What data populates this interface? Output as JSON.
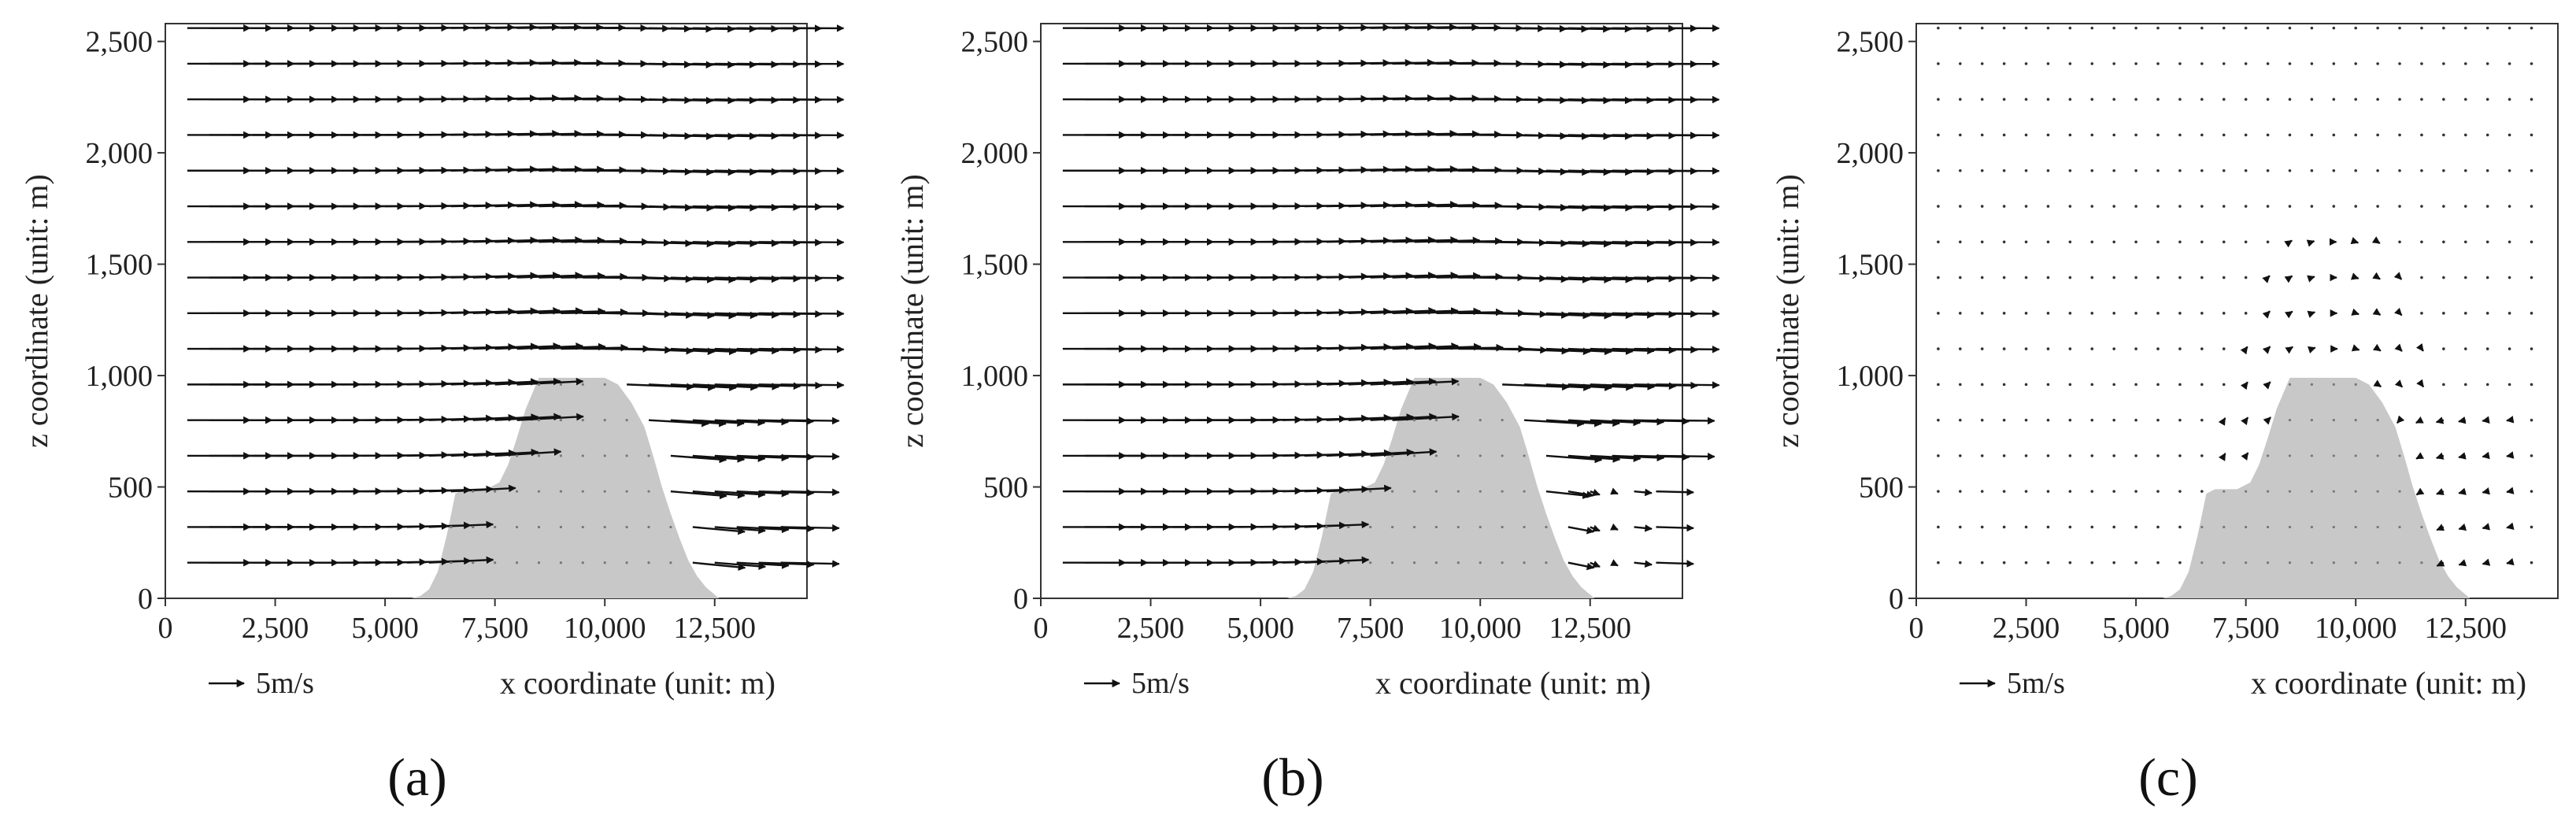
{
  "terrain": {
    "x": [
      0,
      5600,
      5800,
      6000,
      6200,
      6400,
      6600,
      6800,
      7000,
      7300,
      7600,
      7800,
      8000,
      8200,
      8500,
      9000,
      9500,
      10000,
      10300,
      10600,
      10900,
      11100,
      11300,
      11500,
      11700,
      11900,
      12100,
      12300,
      12600,
      14600
    ],
    "z": [
      0,
      0,
      10,
      40,
      120,
      280,
      470,
      490,
      490,
      490,
      520,
      600,
      720,
      850,
      990,
      990,
      990,
      990,
      960,
      880,
      770,
      640,
      500,
      380,
      270,
      170,
      100,
      50,
      0,
      0
    ],
    "color": "#c8c8c8"
  },
  "chart_data": [
    {
      "type": "quiver",
      "panel_label": "(a)",
      "xlabel": "x coordinate (unit: m)",
      "ylabel": "z coordinate (unit: m)",
      "xlim": [
        0,
        14600
      ],
      "ylim": [
        0,
        2580
      ],
      "xticks": [
        0,
        2500,
        5000,
        7500,
        10000,
        12500
      ],
      "xtick_labels": [
        "0",
        "2,500",
        "5,000",
        "7,500",
        "10,000",
        "12,500"
      ],
      "yticks": [
        0,
        500,
        1000,
        1500,
        2000,
        2500
      ],
      "ytick_labels": [
        "0",
        "500",
        "1,000",
        "1,500",
        "2,000",
        "2,500"
      ],
      "scale_label": "5m/s",
      "scale_value": 5,
      "grid_x": {
        "start": 500,
        "step": 500,
        "count": 28
      },
      "grid_z": {
        "start": 160,
        "step": 160,
        "count": 16
      },
      "flow": {
        "U": 6.6,
        "perturbation": 1.0
      },
      "vector_color": "#111111"
    },
    {
      "type": "quiver",
      "panel_label": "(b)",
      "xlabel": "x coordinate (unit: m)",
      "ylabel": "z coordinate (unit: m)",
      "xlim": [
        0,
        14600
      ],
      "ylim": [
        0,
        2580
      ],
      "xticks": [
        0,
        2500,
        5000,
        7500,
        10000,
        12500
      ],
      "xtick_labels": [
        "0",
        "2,500",
        "5,000",
        "7,500",
        "10,000",
        "12,500"
      ],
      "yticks": [
        0,
        500,
        1000,
        1500,
        2000,
        2500
      ],
      "ytick_labels": [
        "0",
        "500",
        "1,000",
        "1,500",
        "2,000",
        "2,500"
      ],
      "scale_label": "5m/s",
      "scale_value": 5,
      "grid_x": {
        "start": 500,
        "step": 500,
        "count": 28
      },
      "grid_z": {
        "start": 160,
        "step": 160,
        "count": 16
      },
      "flow": {
        "U": 6.6,
        "perturbation": 1.0,
        "wake_reduction": 0.85
      },
      "vector_color": "#111111"
    },
    {
      "type": "quiver",
      "panel_label": "(c)",
      "xlabel": "x coordinate (unit: m)",
      "ylabel": "z coordinate (unit: m)",
      "xlim": [
        0,
        14600
      ],
      "ylim": [
        0,
        2580
      ],
      "xticks": [
        0,
        2500,
        5000,
        7500,
        10000,
        12500
      ],
      "xtick_labels": [
        "0",
        "2,500",
        "5,000",
        "7,500",
        "10,000",
        "12,500"
      ],
      "yticks": [
        0,
        500,
        1000,
        1500,
        2000,
        2500
      ],
      "ytick_labels": [
        "0",
        "500",
        "1,000",
        "1,500",
        "2,000",
        "2,500"
      ],
      "scale_label": "5m/s",
      "scale_value": 5,
      "grid_x": {
        "start": 500,
        "step": 500,
        "count": 28
      },
      "grid_z": {
        "start": 160,
        "step": 160,
        "count": 16
      },
      "flow": {
        "U": 0.0,
        "perturbation": 1.0,
        "difference": true
      },
      "vector_color": "#111111"
    }
  ]
}
